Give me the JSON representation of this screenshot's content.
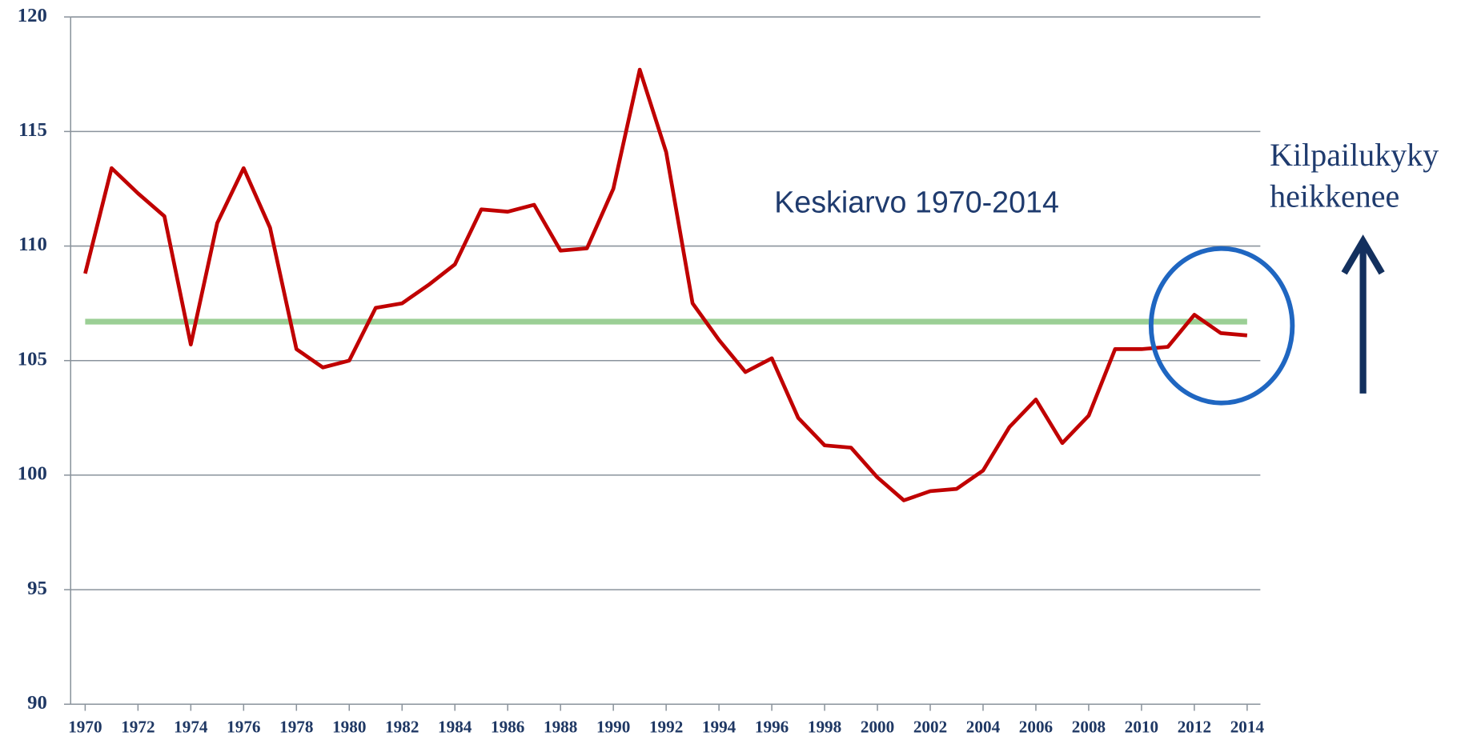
{
  "chart_data": {
    "type": "line",
    "x": [
      1970,
      1971,
      1972,
      1973,
      1974,
      1975,
      1976,
      1977,
      1978,
      1979,
      1980,
      1981,
      1982,
      1983,
      1984,
      1985,
      1986,
      1987,
      1988,
      1989,
      1990,
      1991,
      1992,
      1993,
      1994,
      1995,
      1996,
      1997,
      1998,
      1999,
      2000,
      2001,
      2002,
      2003,
      2004,
      2005,
      2006,
      2007,
      2008,
      2009,
      2010,
      2011,
      2012,
      2013,
      2014
    ],
    "series": [
      {
        "color": "#c00000",
        "values": [
          108.8,
          113.4,
          112.3,
          111.3,
          105.7,
          111.0,
          113.4,
          110.8,
          105.5,
          104.7,
          105.0,
          107.3,
          107.5,
          108.3,
          109.2,
          111.6,
          111.5,
          111.8,
          109.8,
          109.9,
          112.5,
          117.7,
          114.1,
          107.5,
          105.9,
          104.5,
          105.1,
          102.5,
          101.3,
          101.2,
          99.9,
          98.9,
          99.3,
          99.4,
          100.2,
          102.1,
          103.3,
          101.4,
          102.6,
          105.5,
          105.5,
          105.6,
          107.0,
          106.2,
          106.1
        ]
      },
      {
        "name": "Keskiarvo 1970-2014",
        "color": "#9bcf95",
        "values": [
          106.7,
          106.7,
          106.7,
          106.7,
          106.7,
          106.7,
          106.7,
          106.7,
          106.7,
          106.7,
          106.7,
          106.7,
          106.7,
          106.7,
          106.7,
          106.7,
          106.7,
          106.7,
          106.7,
          106.7,
          106.7,
          106.7,
          106.7,
          106.7,
          106.7,
          106.7,
          106.7,
          106.7,
          106.7,
          106.7,
          106.7,
          106.7,
          106.7,
          106.7,
          106.7,
          106.7,
          106.7,
          106.7,
          106.7,
          106.7,
          106.7,
          106.7,
          106.7,
          106.7,
          106.7
        ]
      }
    ],
    "xlim": [
      1969.45,
      2014.5
    ],
    "xticks": [
      1970,
      1972,
      1974,
      1976,
      1978,
      1980,
      1982,
      1984,
      1986,
      1988,
      1990,
      1992,
      1994,
      1996,
      1998,
      2000,
      2002,
      2004,
      2006,
      2008,
      2010,
      2012,
      2014
    ],
    "ylim": [
      90,
      120
    ],
    "yticks": [
      90,
      95,
      100,
      105,
      110,
      115,
      120
    ],
    "grid": true,
    "annotations": [
      "Kilpailukyky",
      "heikkenee"
    ]
  }
}
